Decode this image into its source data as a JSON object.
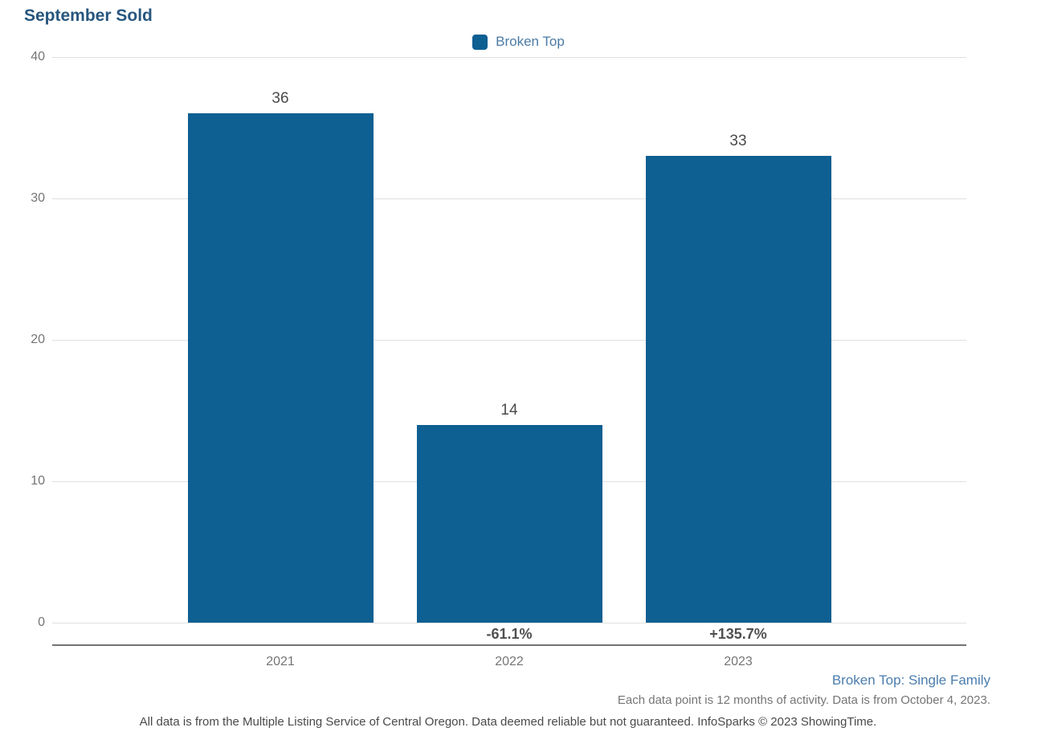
{
  "title": "September Sold",
  "legend": {
    "label": "Broken Top",
    "swatch_color": "#0e5f92"
  },
  "chart_data": {
    "type": "bar",
    "title": "September Sold",
    "categories": [
      "2021",
      "2022",
      "2023"
    ],
    "series": [
      {
        "name": "Broken Top",
        "values": [
          36,
          14,
          33
        ]
      }
    ],
    "bar_value_labels": [
      "36",
      "14",
      "33"
    ],
    "pct_change_labels": [
      "",
      "-61.1%",
      "+135.7%"
    ],
    "xlabel": "",
    "ylabel": "",
    "ylim": [
      0,
      40
    ],
    "yticks": [
      0,
      10,
      20,
      30,
      40
    ],
    "grid": true,
    "legend_position": "top-center",
    "bar_color": "#0e5f92"
  },
  "footer": {
    "series_note": "Broken Top: Single Family",
    "data_note": "Each data point is 12 months of activity. Data is from October 4, 2023.",
    "disclaimer": "All data is from the Multiple Listing Service of Central Oregon. Data deemed reliable but not guaranteed. InfoSparks © 2023 ShowingTime."
  },
  "colors": {
    "title": "#27567e",
    "bar": "#0e5f92",
    "legend_text": "#4a7aa3",
    "footer_link": "#4b7dad",
    "axis_label": "#757575",
    "value_label": "#4a4a4a",
    "pct_label": "#4f4f4f",
    "gridline": "#e0e0e0",
    "axis_line": "#737373"
  }
}
